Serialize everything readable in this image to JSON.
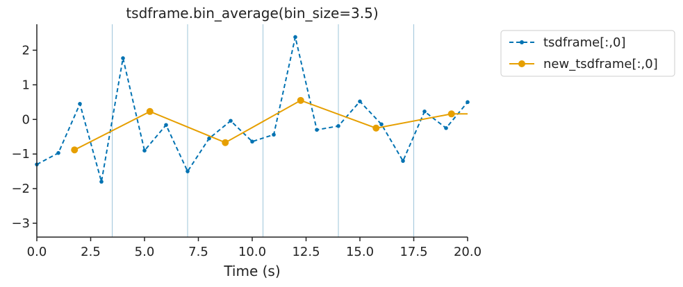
{
  "chart_data": {
    "type": "line",
    "title": "tsdframe.bin_average(bin_size=3.5)",
    "xlabel": "Time (s)",
    "ylabel": "",
    "xlim": [
      0,
      20
    ],
    "ylim": [
      -3.4,
      2.75
    ],
    "x_ticks": [
      0,
      2.5,
      5,
      7.5,
      10,
      12.5,
      15,
      17.5,
      20
    ],
    "x_tick_labels": [
      "0.0",
      "2.5",
      "5.0",
      "7.5",
      "10.0",
      "12.5",
      "15.0",
      "17.5",
      "20.0"
    ],
    "y_ticks": [
      -3,
      -2,
      -1,
      0,
      1,
      2
    ],
    "y_tick_labels": [
      "−3",
      "−2",
      "−1",
      "0",
      "1",
      "2"
    ],
    "bin_edges": [
      3.5,
      7,
      10.5,
      14,
      17.5
    ],
    "grid": false,
    "legend_position": "outside-upper-right",
    "series": [
      {
        "name": "tsdframe[:,0]",
        "style": "dashed-dot-marker",
        "color": "#0072B2",
        "x": [
          0,
          1,
          2,
          3,
          4,
          5,
          6,
          7,
          8,
          9,
          10,
          11,
          12,
          13,
          14,
          15,
          16,
          17,
          18,
          19,
          20
        ],
        "y": [
          -1.3,
          -0.97,
          0.45,
          -1.8,
          1.77,
          -0.9,
          -0.16,
          -1.5,
          -0.55,
          -0.04,
          -0.64,
          -0.44,
          2.38,
          -0.3,
          -0.19,
          0.52,
          -0.14,
          -1.2,
          0.23,
          -0.25,
          0.5
        ]
      },
      {
        "name": "new_tsdframe[:,0]",
        "style": "solid-circle-marker",
        "color": "#E69F00",
        "x": [
          1.75,
          5.25,
          8.75,
          12.25,
          15.75,
          19.25,
          20
        ],
        "y": [
          -0.88,
          0.23,
          -0.67,
          0.55,
          -0.25,
          0.16,
          0.16
        ]
      }
    ]
  }
}
